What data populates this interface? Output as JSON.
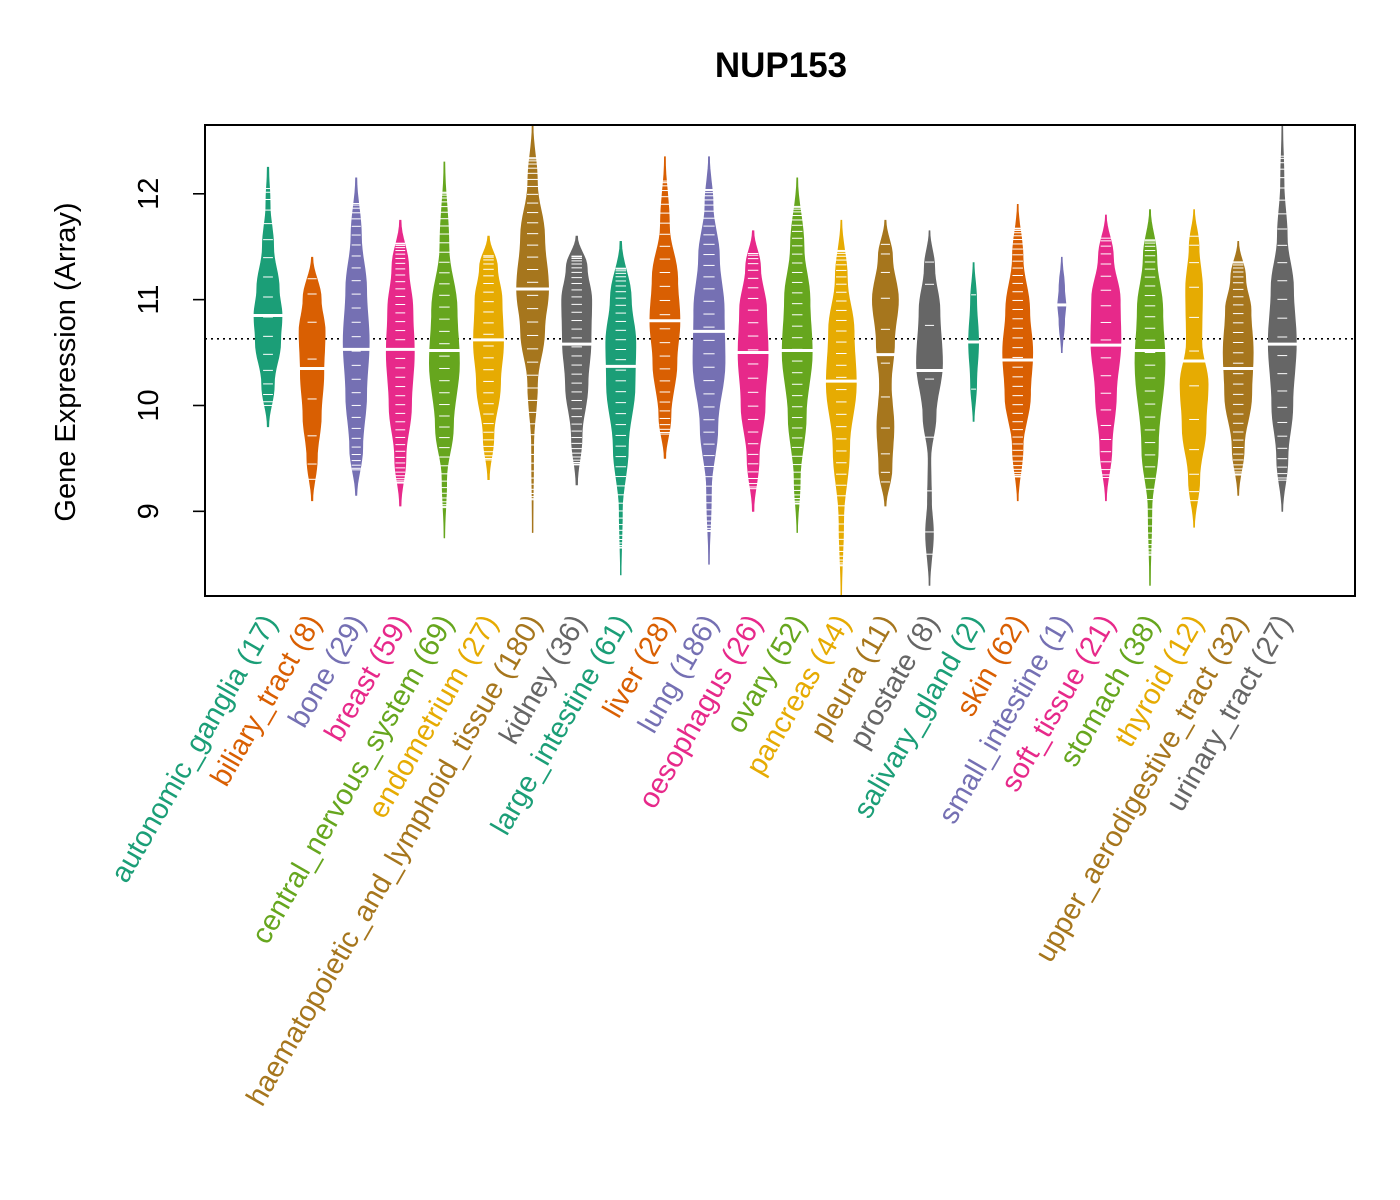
{
  "chart_data": {
    "type": "violin",
    "title": "NUP153",
    "xlabel": "",
    "ylabel": "Gene Expression (Array)",
    "ylim": [
      8.2,
      12.65
    ],
    "yticks": [
      9,
      10,
      11,
      12
    ],
    "reference_line": 10.63,
    "grid": false,
    "categories": [
      {
        "name": "autonomic_ganglia",
        "count": "(17)",
        "color": "#1b9e77",
        "median": 10.85,
        "min": 9.8,
        "max": 12.25,
        "width": 14,
        "shape": [
          [
            9.8,
            0.05
          ],
          [
            10.2,
            0.45
          ],
          [
            10.6,
            0.9
          ],
          [
            10.85,
            1.0
          ],
          [
            11.1,
            0.8
          ],
          [
            11.5,
            0.4
          ],
          [
            11.9,
            0.15
          ],
          [
            12.25,
            0.05
          ]
        ]
      },
      {
        "name": "biliary_tract",
        "count": "(8)",
        "color": "#d95f02",
        "median": 10.35,
        "min": 9.1,
        "max": 11.4,
        "width": 13,
        "shape": [
          [
            9.1,
            0.05
          ],
          [
            9.5,
            0.4
          ],
          [
            9.9,
            0.7
          ],
          [
            10.3,
            0.9
          ],
          [
            10.7,
            1.0
          ],
          [
            11.0,
            0.7
          ],
          [
            11.4,
            0.05
          ]
        ]
      },
      {
        "name": "bone",
        "count": "(29)",
        "color": "#7570b3",
        "median": 10.53,
        "min": 9.15,
        "max": 12.15,
        "width": 13,
        "shape": [
          [
            9.15,
            0.05
          ],
          [
            9.6,
            0.5
          ],
          [
            10.1,
            0.8
          ],
          [
            10.6,
            1.0
          ],
          [
            11.1,
            0.8
          ],
          [
            11.6,
            0.4
          ],
          [
            12.15,
            0.05
          ]
        ]
      },
      {
        "name": "breast",
        "count": "(59)",
        "color": "#e7298a",
        "median": 10.53,
        "min": 9.05,
        "max": 11.75,
        "width": 14,
        "shape": [
          [
            9.05,
            0.05
          ],
          [
            9.5,
            0.4
          ],
          [
            10.0,
            0.8
          ],
          [
            10.5,
            1.0
          ],
          [
            10.9,
            0.9
          ],
          [
            11.3,
            0.6
          ],
          [
            11.75,
            0.05
          ]
        ]
      },
      {
        "name": "central_nervous_system",
        "count": "(69)",
        "color": "#66a61e",
        "median": 10.52,
        "min": 8.75,
        "max": 12.3,
        "width": 15,
        "shape": [
          [
            8.75,
            0.02
          ],
          [
            9.3,
            0.15
          ],
          [
            9.8,
            0.6
          ],
          [
            10.4,
            1.0
          ],
          [
            10.9,
            0.85
          ],
          [
            11.5,
            0.3
          ],
          [
            12.3,
            0.03
          ]
        ]
      },
      {
        "name": "endometrium",
        "count": "(27)",
        "color": "#e6ab02",
        "median": 10.62,
        "min": 9.3,
        "max": 11.6,
        "width": 15,
        "shape": [
          [
            9.3,
            0.05
          ],
          [
            9.7,
            0.35
          ],
          [
            10.2,
            0.8
          ],
          [
            10.6,
            1.0
          ],
          [
            11.0,
            0.9
          ],
          [
            11.3,
            0.6
          ],
          [
            11.6,
            0.05
          ]
        ]
      },
      {
        "name": "haematopoietic_and_lymphoid_tissue",
        "count": "(180)",
        "color": "#a6761d",
        "median": 11.1,
        "min": 8.8,
        "max": 12.65,
        "width": 16,
        "shape": [
          [
            8.8,
            0.02
          ],
          [
            9.6,
            0.06
          ],
          [
            10.2,
            0.3
          ],
          [
            10.7,
            0.75
          ],
          [
            11.1,
            1.0
          ],
          [
            11.6,
            0.75
          ],
          [
            12.1,
            0.3
          ],
          [
            12.65,
            0.03
          ]
        ]
      },
      {
        "name": "kidney",
        "count": "(36)",
        "color": "#666666",
        "median": 10.58,
        "min": 9.25,
        "max": 11.6,
        "width": 15,
        "shape": [
          [
            9.25,
            0.05
          ],
          [
            9.7,
            0.35
          ],
          [
            10.2,
            0.75
          ],
          [
            10.6,
            0.95
          ],
          [
            11.0,
            1.0
          ],
          [
            11.3,
            0.7
          ],
          [
            11.6,
            0.05
          ]
        ]
      },
      {
        "name": "large_intestine",
        "count": "(61)",
        "color": "#1b9e77",
        "median": 10.37,
        "min": 8.4,
        "max": 11.55,
        "width": 15,
        "shape": [
          [
            8.4,
            0.02
          ],
          [
            9.0,
            0.1
          ],
          [
            9.6,
            0.5
          ],
          [
            10.2,
            0.95
          ],
          [
            10.6,
            1.0
          ],
          [
            11.0,
            0.7
          ],
          [
            11.55,
            0.05
          ]
        ]
      },
      {
        "name": "liver",
        "count": "(28)",
        "color": "#d95f02",
        "median": 10.8,
        "min": 9.5,
        "max": 12.35,
        "width": 15,
        "shape": [
          [
            9.5,
            0.05
          ],
          [
            9.9,
            0.4
          ],
          [
            10.4,
            0.8
          ],
          [
            10.8,
            1.0
          ],
          [
            11.2,
            0.85
          ],
          [
            11.7,
            0.3
          ],
          [
            12.35,
            0.03
          ]
        ]
      },
      {
        "name": "lung",
        "count": "(186)",
        "color": "#7570b3",
        "median": 10.7,
        "min": 8.5,
        "max": 12.35,
        "width": 16,
        "shape": [
          [
            8.5,
            0.02
          ],
          [
            9.2,
            0.15
          ],
          [
            9.8,
            0.55
          ],
          [
            10.4,
            1.0
          ],
          [
            10.9,
            0.95
          ],
          [
            11.4,
            0.65
          ],
          [
            11.9,
            0.25
          ],
          [
            12.35,
            0.03
          ]
        ]
      },
      {
        "name": "oesophagus",
        "count": "(26)",
        "color": "#e7298a",
        "median": 10.5,
        "min": 9.0,
        "max": 11.65,
        "width": 15,
        "shape": [
          [
            9.0,
            0.05
          ],
          [
            9.5,
            0.4
          ],
          [
            10.0,
            0.8
          ],
          [
            10.5,
            1.0
          ],
          [
            10.9,
            0.9
          ],
          [
            11.3,
            0.5
          ],
          [
            11.65,
            0.05
          ]
        ]
      },
      {
        "name": "ovary",
        "count": "(52)",
        "color": "#66a61e",
        "median": 10.52,
        "min": 8.8,
        "max": 12.15,
        "width": 15,
        "shape": [
          [
            8.8,
            0.02
          ],
          [
            9.3,
            0.2
          ],
          [
            9.9,
            0.6
          ],
          [
            10.5,
            1.0
          ],
          [
            11.0,
            0.85
          ],
          [
            11.5,
            0.45
          ],
          [
            12.15,
            0.03
          ]
        ]
      },
      {
        "name": "pancreas",
        "count": "(44)",
        "color": "#e6ab02",
        "median": 10.23,
        "min": 8.2,
        "max": 11.75,
        "width": 15,
        "shape": [
          [
            8.2,
            0.02
          ],
          [
            8.9,
            0.15
          ],
          [
            9.6,
            0.55
          ],
          [
            10.2,
            1.0
          ],
          [
            10.7,
            0.85
          ],
          [
            11.2,
            0.4
          ],
          [
            11.75,
            0.03
          ]
        ]
      },
      {
        "name": "pleura",
        "count": "(11)",
        "color": "#a6761d",
        "median": 10.48,
        "min": 9.05,
        "max": 11.75,
        "width": 13,
        "shape": [
          [
            9.05,
            0.05
          ],
          [
            9.4,
            0.5
          ],
          [
            9.8,
            0.65
          ],
          [
            10.2,
            0.45
          ],
          [
            10.6,
            0.7
          ],
          [
            11.0,
            1.0
          ],
          [
            11.4,
            0.55
          ],
          [
            11.75,
            0.05
          ]
        ]
      },
      {
        "name": "prostate",
        "count": "(8)",
        "color": "#666666",
        "median": 10.33,
        "min": 8.3,
        "max": 11.65,
        "width": 13,
        "shape": [
          [
            8.3,
            0.03
          ],
          [
            8.8,
            0.3
          ],
          [
            9.1,
            0.15
          ],
          [
            9.5,
            0.1
          ],
          [
            9.9,
            0.5
          ],
          [
            10.4,
            1.0
          ],
          [
            10.9,
            0.8
          ],
          [
            11.3,
            0.4
          ],
          [
            11.65,
            0.03
          ]
        ]
      },
      {
        "name": "salivary_gland",
        "count": "(2)",
        "color": "#1b9e77",
        "median": 10.6,
        "min": 9.85,
        "max": 11.35,
        "width": 5,
        "shape": [
          [
            9.85,
            0.1
          ],
          [
            10.2,
            0.6
          ],
          [
            10.6,
            1.0
          ],
          [
            11.0,
            0.6
          ],
          [
            11.35,
            0.1
          ]
        ]
      },
      {
        "name": "skin",
        "count": "(62)",
        "color": "#d95f02",
        "median": 10.43,
        "min": 9.1,
        "max": 11.9,
        "width": 15,
        "shape": [
          [
            9.1,
            0.03
          ],
          [
            9.6,
            0.35
          ],
          [
            10.1,
            0.85
          ],
          [
            10.5,
            1.0
          ],
          [
            10.9,
            0.8
          ],
          [
            11.4,
            0.35
          ],
          [
            11.9,
            0.03
          ]
        ]
      },
      {
        "name": "small_intestine",
        "count": "(1)",
        "color": "#7570b3",
        "median": 10.95,
        "min": 10.5,
        "max": 11.4,
        "width": 4,
        "shape": [
          [
            10.5,
            0.1
          ],
          [
            10.8,
            0.7
          ],
          [
            10.95,
            1.0
          ],
          [
            11.1,
            0.7
          ],
          [
            11.4,
            0.1
          ]
        ]
      },
      {
        "name": "soft_tissue",
        "count": "(21)",
        "color": "#e7298a",
        "median": 10.57,
        "min": 9.1,
        "max": 11.8,
        "width": 15,
        "shape": [
          [
            9.1,
            0.03
          ],
          [
            9.6,
            0.4
          ],
          [
            10.1,
            0.7
          ],
          [
            10.6,
            1.0
          ],
          [
            11.0,
            0.95
          ],
          [
            11.4,
            0.5
          ],
          [
            11.8,
            0.03
          ]
        ]
      },
      {
        "name": "stomach",
        "count": "(38)",
        "color": "#66a61e",
        "median": 10.52,
        "min": 8.3,
        "max": 11.85,
        "width": 15,
        "shape": [
          [
            8.3,
            0.02
          ],
          [
            9.0,
            0.12
          ],
          [
            9.6,
            0.55
          ],
          [
            10.4,
            1.0
          ],
          [
            10.9,
            0.85
          ],
          [
            11.4,
            0.45
          ],
          [
            11.85,
            0.03
          ]
        ]
      },
      {
        "name": "thyroid",
        "count": "(12)",
        "color": "#e6ab02",
        "median": 10.42,
        "min": 8.85,
        "max": 11.85,
        "width": 14,
        "shape": [
          [
            8.85,
            0.03
          ],
          [
            9.3,
            0.4
          ],
          [
            9.8,
            0.85
          ],
          [
            10.2,
            1.0
          ],
          [
            10.6,
            0.55
          ],
          [
            11.1,
            0.6
          ],
          [
            11.5,
            0.35
          ],
          [
            11.85,
            0.03
          ]
        ]
      },
      {
        "name": "upper_aerodigestive_tract",
        "count": "(32)",
        "color": "#a6761d",
        "median": 10.35,
        "min": 9.15,
        "max": 11.55,
        "width": 15,
        "shape": [
          [
            9.15,
            0.03
          ],
          [
            9.6,
            0.4
          ],
          [
            10.1,
            0.9
          ],
          [
            10.5,
            1.0
          ],
          [
            10.9,
            0.85
          ],
          [
            11.2,
            0.5
          ],
          [
            11.55,
            0.03
          ]
        ]
      },
      {
        "name": "urinary_tract",
        "count": "(27)",
        "color": "#666666",
        "median": 10.58,
        "min": 9.0,
        "max": 12.65,
        "width": 14,
        "shape": [
          [
            9.0,
            0.03
          ],
          [
            9.5,
            0.4
          ],
          [
            10.0,
            0.75
          ],
          [
            10.6,
            1.0
          ],
          [
            11.1,
            0.8
          ],
          [
            11.6,
            0.35
          ],
          [
            12.1,
            0.12
          ],
          [
            12.65,
            0.03
          ]
        ]
      }
    ]
  }
}
